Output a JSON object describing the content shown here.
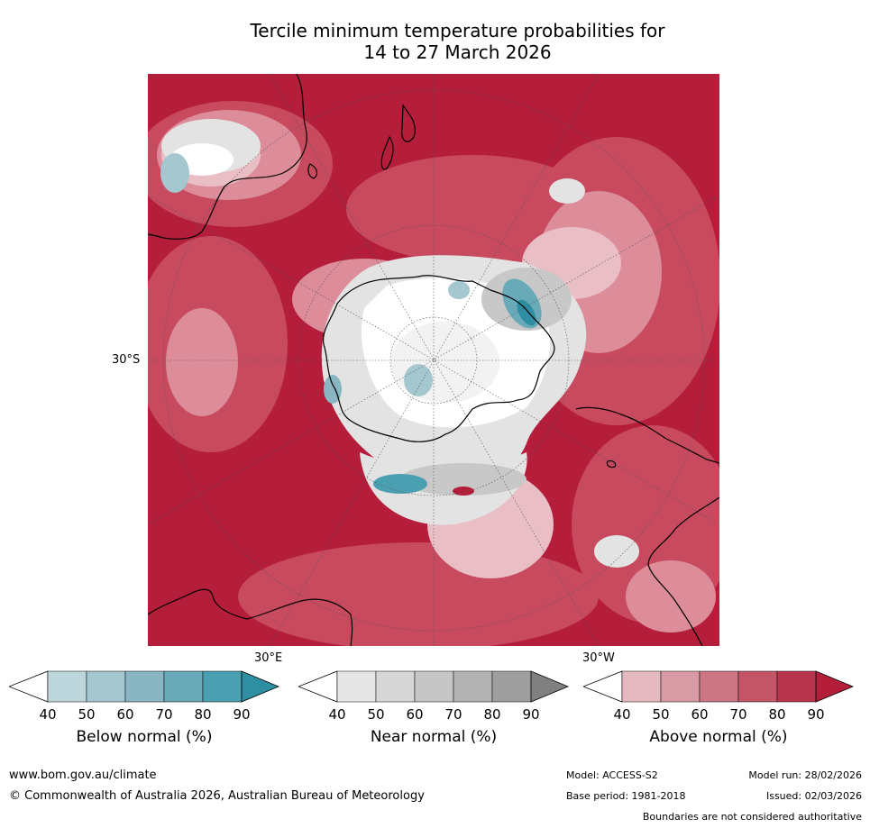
{
  "title_line1": "Tercile minimum temperature probabilities for",
  "title_line2": "14 to 27 March 2026",
  "map": {
    "lat_label": "30°S",
    "lon_labels": {
      "east": "30°E",
      "west": "30°W"
    },
    "colors": {
      "above_base": "#b41e3b",
      "above_mid": "#c84a5e",
      "above_light": "#dc8d99",
      "above_pale": "#e9bec5",
      "near_light": "#e3e3e3",
      "near_mid": "#c8c8c8",
      "below": "#2e93a6",
      "coast": "#000000",
      "grid": "#555555"
    }
  },
  "colorbars": [
    {
      "id": "below",
      "label": "Below normal (%)",
      "ticks": [
        "40",
        "50",
        "60",
        "70",
        "80",
        "90"
      ],
      "colors": [
        "#ffffff",
        "#bcd6dc",
        "#a5c7cf",
        "#89b6c2",
        "#69aab8",
        "#4aa0b0",
        "#2e8fa3"
      ]
    },
    {
      "id": "near",
      "label": "Near normal (%)",
      "ticks": [
        "40",
        "50",
        "60",
        "70",
        "80",
        "90"
      ],
      "colors": [
        "#ffffff",
        "#e6e6e6",
        "#d6d6d6",
        "#c6c6c6",
        "#b3b3b3",
        "#9e9e9e",
        "#808080"
      ]
    },
    {
      "id": "above",
      "label": "Above normal (%)",
      "ticks": [
        "40",
        "50",
        "60",
        "70",
        "80",
        "90"
      ],
      "colors": [
        "#ffffff",
        "#e4b9c0",
        "#d89aa4",
        "#cd7683",
        "#c45568",
        "#b8354d",
        "#b41e3b"
      ]
    }
  ],
  "footer": {
    "website": "www.bom.gov.au/climate",
    "copyright": "© Commonwealth of Australia 2026, Australian Bureau of Meteorology",
    "model": "Model: ACCESS-S2",
    "model_run": "Model run: 28/02/2026",
    "base_period": "Base period: 1981-2018",
    "issued": "Issued: 02/03/2026",
    "disclaimer": "Boundaries are not considered authoritative"
  }
}
